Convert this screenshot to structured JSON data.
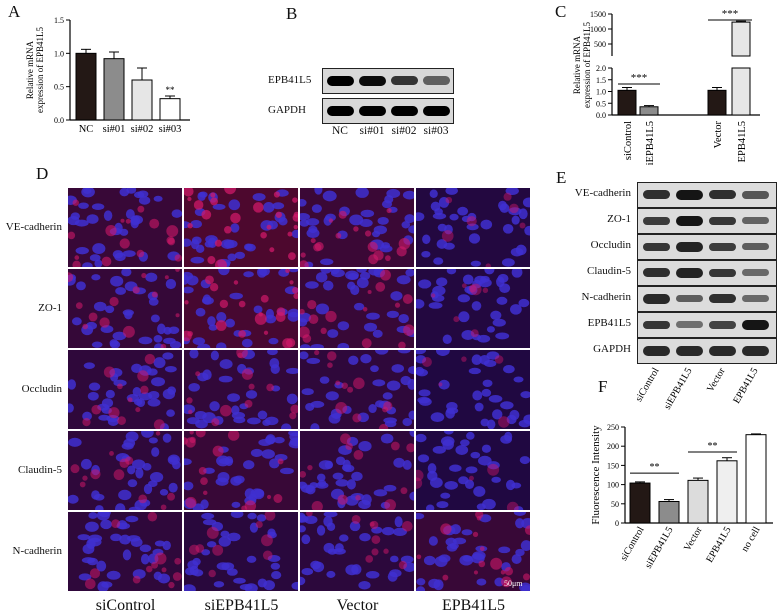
{
  "panels": {
    "A": "A",
    "B": "B",
    "C": "C",
    "D": "D",
    "E": "E",
    "F": "F"
  },
  "chart_data": [
    {
      "id": "A",
      "type": "bar",
      "categories": [
        "NC",
        "si#01",
        "si#02",
        "si#03"
      ],
      "values": [
        1.0,
        0.92,
        0.6,
        0.32
      ],
      "errors": [
        0.06,
        0.1,
        0.18,
        0.04
      ],
      "colors": [
        "#231815",
        "#8c8c8c",
        "#e6e6e6",
        "#ffffff"
      ],
      "ylabel": "Relative mRNA\nexpression of EPB41L5",
      "ylim": [
        0,
        1.5
      ],
      "yticks": [
        "0.0",
        "0.5",
        "1.0",
        "1.5"
      ],
      "annotations": [
        {
          "category": "si#03",
          "text": "**"
        }
      ]
    },
    {
      "id": "C",
      "type": "bar",
      "categories": [
        "siControl",
        "siEPB41L5",
        "Vector",
        "EPB41L5"
      ],
      "values": [
        1.05,
        0.35,
        1.05,
        1230
      ],
      "errors": [
        0.12,
        0.05,
        0.12,
        30
      ],
      "colors": [
        "#231815",
        "#8c8c8c",
        "#231815",
        "#e6e6e6"
      ],
      "ylabel": "Relative mRNA\nexpression of EPB41L5",
      "broken_axis": true,
      "yticks_lower": [
        "0.0",
        "0.5",
        "1.0",
        "1.5",
        "2.0"
      ],
      "yticks_upper": [
        "500",
        "1000",
        "1500"
      ],
      "annotations": [
        {
          "between": [
            "siControl",
            "siEPB41L5"
          ],
          "text": "***"
        },
        {
          "between": [
            "Vector",
            "EPB41L5"
          ],
          "text": "***"
        }
      ]
    },
    {
      "id": "F",
      "type": "bar",
      "categories": [
        "siControl",
        "siEPB41L5",
        "Vector",
        "EPB41L5",
        "no cell"
      ],
      "values": [
        104,
        56,
        111,
        162,
        230
      ],
      "errors": [
        3,
        5,
        6,
        8,
        2
      ],
      "colors": [
        "#231815",
        "#8c8c8c",
        "#dcdcdc",
        "#efefef",
        "#ffffff"
      ],
      "ylabel": "Fluorescence Intensity",
      "ylim": [
        0,
        250
      ],
      "yticks": [
        "0",
        "50",
        "100",
        "150",
        "200",
        "250"
      ],
      "annotations": [
        {
          "between": [
            "siControl",
            "siEPB41L5"
          ],
          "text": "**"
        },
        {
          "between": [
            "Vector",
            "EPB41L5"
          ],
          "text": "**"
        }
      ]
    }
  ],
  "blotB": {
    "rows": [
      "EPB41L5",
      "GAPDH"
    ],
    "lanes": [
      "NC",
      "si#01",
      "si#02",
      "si#03"
    ],
    "intensity": [
      [
        1.0,
        0.95,
        0.75,
        0.5
      ],
      [
        1.0,
        1.0,
        1.0,
        1.0
      ]
    ]
  },
  "blotE": {
    "rows": [
      "VE-cadherin",
      "ZO-1",
      "Occludin",
      "Claudin-5",
      "N-cadherin",
      "EPB41L5",
      "GAPDH"
    ],
    "lanes": [
      "siControl",
      "siEPB41L5",
      "Vector",
      "EPB41L5"
    ],
    "intensity": [
      [
        0.8,
        1.0,
        0.8,
        0.5
      ],
      [
        0.7,
        1.0,
        0.75,
        0.4
      ],
      [
        0.75,
        0.9,
        0.7,
        0.45
      ],
      [
        0.8,
        0.9,
        0.75,
        0.35
      ],
      [
        0.85,
        0.45,
        0.8,
        0.35
      ],
      [
        0.75,
        0.3,
        0.65,
        1.0
      ],
      [
        0.85,
        0.85,
        0.85,
        0.85
      ]
    ]
  },
  "panelD": {
    "rows": [
      "VE-cadherin",
      "ZO-1",
      "Occludin",
      "Claudin-5",
      "N-cadherin"
    ],
    "cols": [
      "siControl",
      "siEPB41L5",
      "Vector",
      "EPB41L5"
    ],
    "scale_bar": "50μm",
    "red_level": [
      [
        0.6,
        0.95,
        0.65,
        0.25
      ],
      [
        0.55,
        0.85,
        0.6,
        0.25
      ],
      [
        0.45,
        0.5,
        0.45,
        0.2
      ],
      [
        0.45,
        0.6,
        0.45,
        0.2
      ],
      [
        0.45,
        0.35,
        0.4,
        0.6
      ]
    ]
  }
}
